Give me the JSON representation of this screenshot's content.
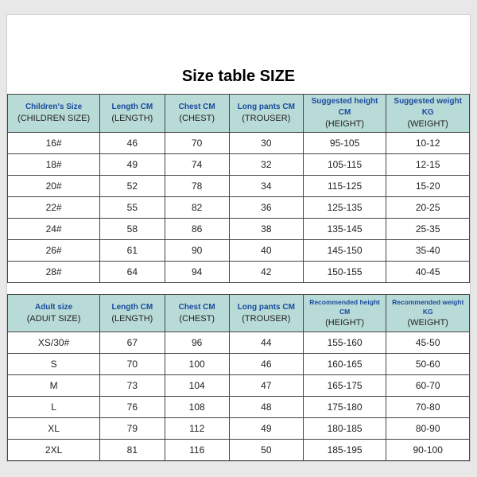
{
  "title": "Size table SIZE",
  "colors": {
    "header_bg": "#b9dbd8",
    "header_top_text": "#1a4a9c",
    "border": "#444444",
    "page_bg": "#ffffff",
    "outer_bg": "#e8e8e8"
  },
  "children": {
    "headers": [
      {
        "top": "Children's Size",
        "bot": "(CHILDREN SIZE)"
      },
      {
        "top": "Length CM",
        "bot": "(LENGTH)"
      },
      {
        "top": "Chest CM",
        "bot": "(CHEST)"
      },
      {
        "top": "Long pants CM",
        "bot": "(TROUSER)"
      },
      {
        "top": "Suggested height CM",
        "bot": "(HEIGHT)"
      },
      {
        "top": "Suggested weight KG",
        "bot": "(WEIGHT)"
      }
    ],
    "rows": [
      [
        "16#",
        "46",
        "70",
        "30",
        "95-105",
        "10-12"
      ],
      [
        "18#",
        "49",
        "74",
        "32",
        "105-115",
        "12-15"
      ],
      [
        "20#",
        "52",
        "78",
        "34",
        "115-125",
        "15-20"
      ],
      [
        "22#",
        "55",
        "82",
        "36",
        "125-135",
        "20-25"
      ],
      [
        "24#",
        "58",
        "86",
        "38",
        "135-145",
        "25-35"
      ],
      [
        "26#",
        "61",
        "90",
        "40",
        "145-150",
        "35-40"
      ],
      [
        "28#",
        "64",
        "94",
        "42",
        "150-155",
        "40-45"
      ]
    ]
  },
  "adult": {
    "headers": [
      {
        "top": "Adult size",
        "bot": "(ADUIT SIZE)"
      },
      {
        "top": "Length CM",
        "bot": "(LENGTH)"
      },
      {
        "top": "Chest CM",
        "bot": "(CHEST)"
      },
      {
        "top": "Long pants CM",
        "bot": "(TROUSER)"
      },
      {
        "top": "Recommended height CM",
        "bot": "(HEIGHT)"
      },
      {
        "top": "Recommended weight KG",
        "bot": "(WEIGHT)"
      }
    ],
    "rows": [
      [
        "XS/30#",
        "67",
        "96",
        "44",
        "155-160",
        "45-50"
      ],
      [
        "S",
        "70",
        "100",
        "46",
        "160-165",
        "50-60"
      ],
      [
        "M",
        "73",
        "104",
        "47",
        "165-175",
        "60-70"
      ],
      [
        "L",
        "76",
        "108",
        "48",
        "175-180",
        "70-80"
      ],
      [
        "XL",
        "79",
        "112",
        "49",
        "180-185",
        "80-90"
      ],
      [
        "2XL",
        "81",
        "116",
        "50",
        "185-195",
        "90-100"
      ]
    ]
  }
}
